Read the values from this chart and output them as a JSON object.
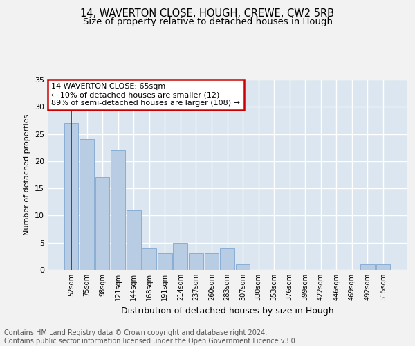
{
  "title1": "14, WAVERTON CLOSE, HOUGH, CREWE, CW2 5RB",
  "title2": "Size of property relative to detached houses in Hough",
  "xlabel": "Distribution of detached houses by size in Hough",
  "ylabel": "Number of detached properties",
  "categories": [
    "52sqm",
    "75sqm",
    "98sqm",
    "121sqm",
    "144sqm",
    "168sqm",
    "191sqm",
    "214sqm",
    "237sqm",
    "260sqm",
    "283sqm",
    "307sqm",
    "330sqm",
    "353sqm",
    "376sqm",
    "399sqm",
    "422sqm",
    "446sqm",
    "469sqm",
    "492sqm",
    "515sqm"
  ],
  "values": [
    27,
    24,
    17,
    22,
    11,
    4,
    3,
    5,
    3,
    3,
    4,
    1,
    0,
    0,
    0,
    0,
    0,
    0,
    0,
    1,
    1
  ],
  "bar_color": "#b8cce4",
  "bar_edge_color": "#8aaed4",
  "bg_color": "#dce6f0",
  "grid_color": "#ffffff",
  "annotation_box_text": "14 WAVERTON CLOSE: 65sqm\n← 10% of detached houses are smaller (12)\n89% of semi-detached houses are larger (108) →",
  "annotation_box_color": "#ffffff",
  "annotation_box_edge": "#cc0000",
  "ylim": [
    0,
    35
  ],
  "yticks": [
    0,
    5,
    10,
    15,
    20,
    25,
    30,
    35
  ],
  "footer_text": "Contains HM Land Registry data © Crown copyright and database right 2024.\nContains public sector information licensed under the Open Government Licence v3.0.",
  "title1_fontsize": 10.5,
  "title2_fontsize": 9.5,
  "annot_fontsize": 8,
  "footer_fontsize": 7,
  "fig_bg": "#f2f2f2"
}
